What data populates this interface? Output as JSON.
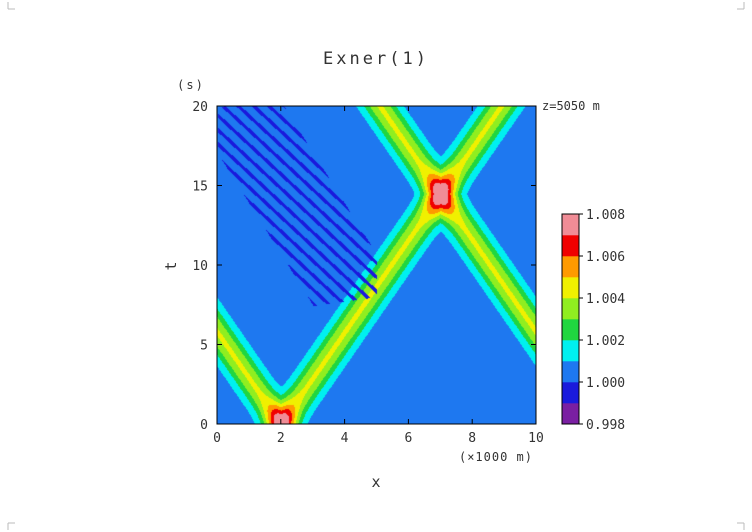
{
  "chart_data": {
    "type": "heatmap",
    "title": "Exner(1)",
    "xlabel": "x",
    "xunit": "(×1000 m)",
    "ylabel": "t",
    "yunit": "(s)",
    "annotation": "z=5050 m",
    "xlim": [
      0,
      10
    ],
    "ylim": [
      0,
      20
    ],
    "xticks": [
      0,
      2,
      4,
      6,
      8,
      10
    ],
    "yticks": [
      0,
      5,
      10,
      15,
      20
    ],
    "colorbar": {
      "ticks": [
        "1.008",
        "1.006",
        "1.004",
        "1.002",
        "1.000",
        "0.998"
      ],
      "levels": [
        0.998,
        0.999,
        1.0,
        1.001,
        1.002,
        1.003,
        1.004,
        1.005,
        1.006,
        1.007,
        1.008
      ],
      "colors": [
        "#7a1fa2",
        "#1a1adc",
        "#1e78f0",
        "#00f0f0",
        "#20d640",
        "#90ee20",
        "#f0f000",
        "#ff9a00",
        "#f00000",
        "#f08c96"
      ]
    },
    "features": {
      "background_value": 1.0005,
      "peaks": [
        {
          "x": 2.0,
          "t": 0.0,
          "value": 1.0085
        },
        {
          "x": 7.0,
          "t": 14.5,
          "value": 1.0085
        }
      ],
      "wave_speed_km_per_s": 0.345,
      "band_width_km": 0.9,
      "low_region": {
        "note": "oscillating low-value blobs",
        "value": 0.9995
      }
    }
  }
}
